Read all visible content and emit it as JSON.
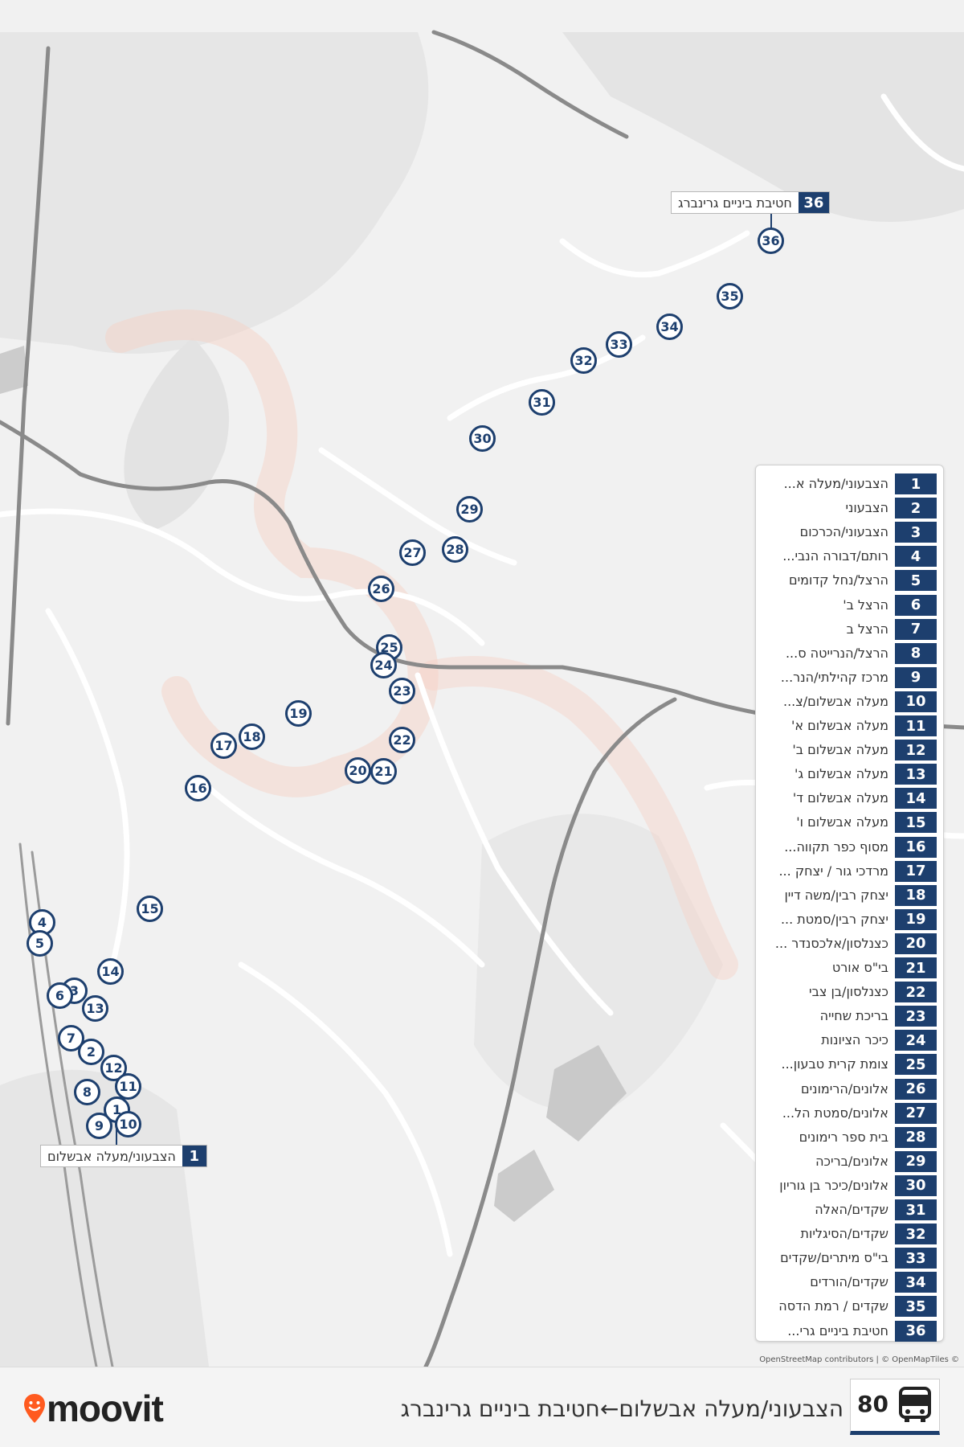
{
  "colors": {
    "accent": "#1d3f6e",
    "map_background": "#f1f1f1",
    "route_faded": "#f7c9bd",
    "road_dark": "#8a8a8a",
    "logo_pin": "#ff5a1f"
  },
  "map": {
    "start_callout": {
      "number": "1",
      "name": "הצבעוני/מעלה אבשלום"
    },
    "end_callout": {
      "number": "36",
      "name": "חטיבת ביניים גרינברג"
    },
    "markers": [
      "36",
      "35",
      "34",
      "33",
      "32",
      "31",
      "30",
      "29",
      "28",
      "27",
      "26",
      "25",
      "24",
      "23",
      "22",
      "21",
      "20",
      "19",
      "18",
      "17",
      "16",
      "15",
      "4",
      "5",
      "14",
      "3",
      "6",
      "13",
      "7",
      "2",
      "12",
      "11",
      "8",
      "1",
      "10",
      "9"
    ]
  },
  "legend": {
    "stops": [
      {
        "num": "1",
        "name": "הצבעוני/מעלה א..."
      },
      {
        "num": "2",
        "name": "הצבעוני"
      },
      {
        "num": "3",
        "name": "הצבעוני/הכרכום"
      },
      {
        "num": "4",
        "name": "רותם/דבורה הנבי..."
      },
      {
        "num": "5",
        "name": "הרצל/נחל קדומים"
      },
      {
        "num": "6",
        "name": "הרצל ב'"
      },
      {
        "num": "7",
        "name": "הרצל ב"
      },
      {
        "num": "8",
        "name": "הרצל/הנרייטה ס..."
      },
      {
        "num": "9",
        "name": "מרכז קהילתי/הנר..."
      },
      {
        "num": "10",
        "name": "מעלה אבשלום/צ..."
      },
      {
        "num": "11",
        "name": "מעלה אבשלום א'"
      },
      {
        "num": "12",
        "name": "מעלה אבשלום ב'"
      },
      {
        "num": "13",
        "name": "מעלה אבשלום ג'"
      },
      {
        "num": "14",
        "name": "מעלה אבשלום ד'"
      },
      {
        "num": "15",
        "name": "מעלה אבשלום ו'"
      },
      {
        "num": "16",
        "name": "מסוף כפר תקווה..."
      },
      {
        "num": "17",
        "name": "מרדכי גור / יצחק ..."
      },
      {
        "num": "18",
        "name": "יצחק רבין/משה דיין"
      },
      {
        "num": "19",
        "name": "יצחק רבין/סמטת ..."
      },
      {
        "num": "20",
        "name": "כצנלסון/אלכסנדר ..."
      },
      {
        "num": "21",
        "name": "בי\"ס אורט"
      },
      {
        "num": "22",
        "name": "כצנלסון/בן צבי"
      },
      {
        "num": "23",
        "name": "בריכת שחייה"
      },
      {
        "num": "24",
        "name": "כיכר הציונות"
      },
      {
        "num": "25",
        "name": "צומת קרית טבעון..."
      },
      {
        "num": "26",
        "name": "אלונים/הרימונים"
      },
      {
        "num": "27",
        "name": "אלונים/סמטת הל..."
      },
      {
        "num": "28",
        "name": "בית ספר רימונים"
      },
      {
        "num": "29",
        "name": "אלונים/בריכה"
      },
      {
        "num": "30",
        "name": "אלונים/כיכר בן גוריון"
      },
      {
        "num": "31",
        "name": "שקדים/האלה"
      },
      {
        "num": "32",
        "name": "שקדים/הסיגליות"
      },
      {
        "num": "33",
        "name": "בי\"ס מיתרים/שקדים"
      },
      {
        "num": "34",
        "name": "שקדים/הורדים"
      },
      {
        "num": "35",
        "name": "שקדים / רמת הדסה"
      },
      {
        "num": "36",
        "name": "חטיבת ביניים גרי..."
      }
    ]
  },
  "attribution": "OpenStreetMap contributors | © OpenMapTiles ©",
  "footer": {
    "logo_text": "moovit",
    "logo_icon": "pin-smile-icon",
    "route_number": "80",
    "route_title": "הצבעוני/מעלה אבשלום←חטיבת ביניים גרינברג",
    "bus_icon": "bus-icon"
  }
}
